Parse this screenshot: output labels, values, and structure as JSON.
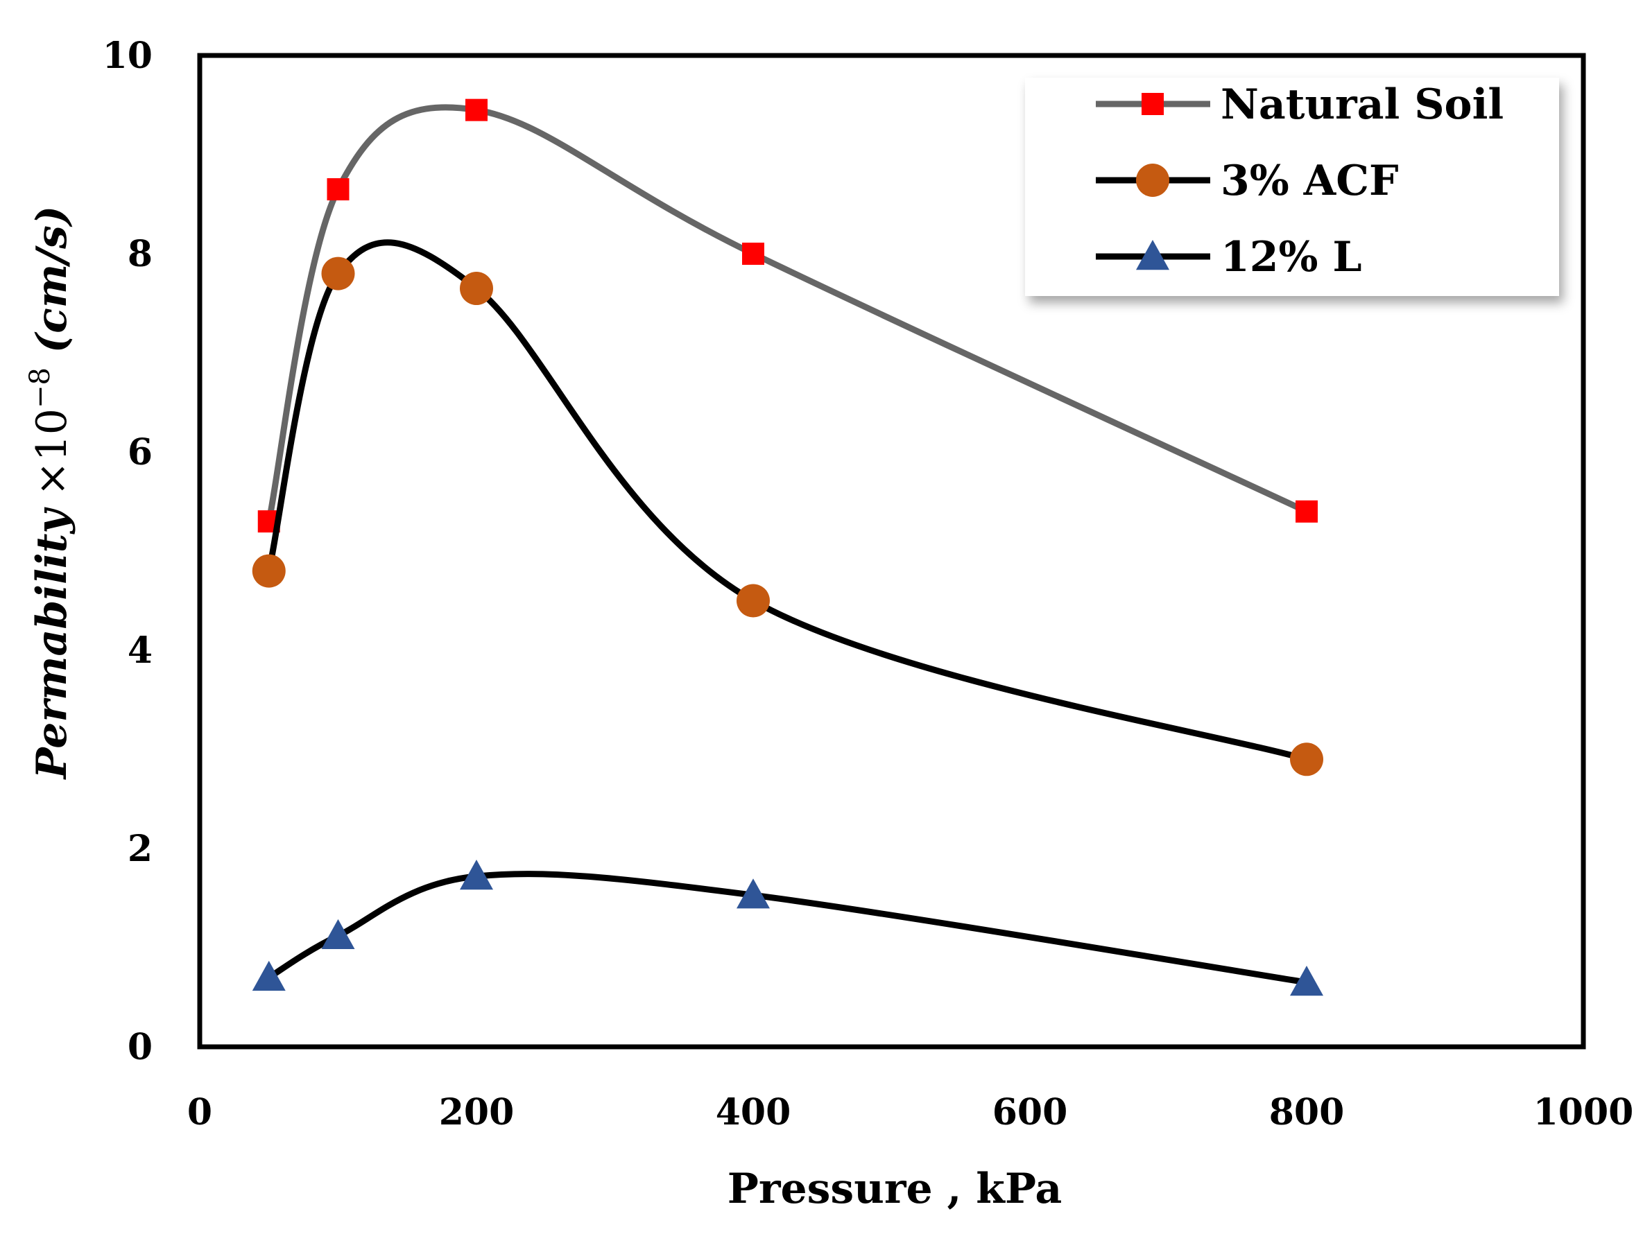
{
  "chart_data": {
    "type": "line",
    "title": "",
    "xlabel": "Pressure , kPa",
    "ylabel": {
      "base": "Permability",
      "times": " ×10",
      "exponent": "−8",
      "unit": " (cm/s)"
    },
    "xlim": [
      0,
      1000
    ],
    "ylim": [
      0,
      10
    ],
    "xticks": [
      0,
      200,
      400,
      600,
      800,
      1000
    ],
    "yticks": [
      0,
      2,
      4,
      6,
      8,
      10
    ],
    "grid": false,
    "legend_position": "top-right",
    "series": [
      {
        "name": "Natural Soil",
        "marker": "square",
        "line_color": "#666666",
        "marker_color": "#ff0000",
        "x": [
          50,
          100,
          200,
          400,
          800
        ],
        "y": [
          5.3,
          8.65,
          9.45,
          8.0,
          5.4
        ]
      },
      {
        "name": "3% ACF",
        "marker": "circle",
        "line_color": "#000000",
        "marker_color": "#c55a11",
        "x": [
          50,
          100,
          200,
          400,
          800
        ],
        "y": [
          4.8,
          7.8,
          7.65,
          4.5,
          2.9
        ]
      },
      {
        "name": "12% L",
        "marker": "triangle",
        "line_color": "#000000",
        "marker_color": "#2f5597",
        "x": [
          50,
          100,
          200,
          400,
          800
        ],
        "y": [
          0.7,
          1.12,
          1.72,
          1.53,
          0.65
        ]
      }
    ]
  }
}
